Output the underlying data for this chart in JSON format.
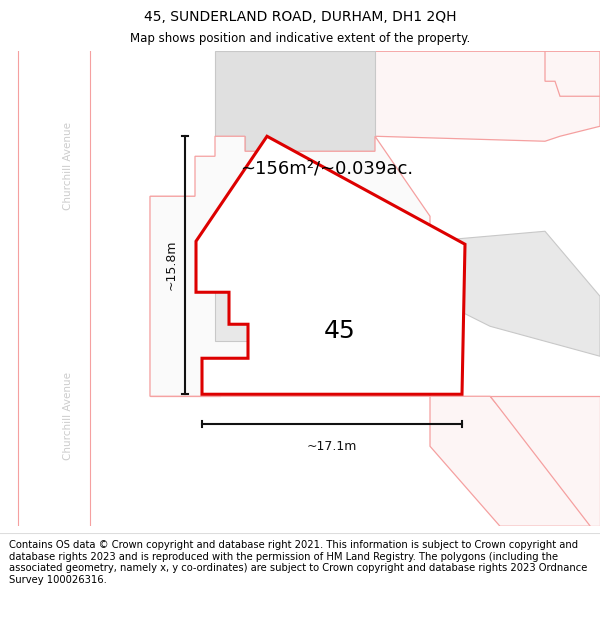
{
  "title": "45, SUNDERLAND ROAD, DURHAM, DH1 2QH",
  "subtitle": "Map shows position and indicative extent of the property.",
  "footer": "Contains OS data © Crown copyright and database right 2021. This information is subject to Crown copyright and database rights 2023 and is reproduced with the permission of HM Land Registry. The polygons (including the associated geometry, namely x, y co-ordinates) are subject to Crown copyright and database rights 2023 Ordnance Survey 100026316.",
  "area_label": "~156m²/~0.039ac.",
  "width_label": "~17.1m",
  "height_label": "~15.8m",
  "number_label": "45",
  "street_label": "Churchill Avenue",
  "plot_border": "#dd0000",
  "plot_fill": "#ffffff",
  "neighbor_border": "#f5a0a0",
  "gray_fill": "#e0e0e0",
  "gray_border": "#c8c8c8",
  "light_pink_fill": "#fdf5f5",
  "street_color": "#cccccc",
  "dim_color": "#111111",
  "title_fontsize": 10,
  "subtitle_fontsize": 8.5,
  "footer_fontsize": 7.2,
  "number_fontsize": 18,
  "area_fontsize": 13,
  "dim_fontsize": 9
}
